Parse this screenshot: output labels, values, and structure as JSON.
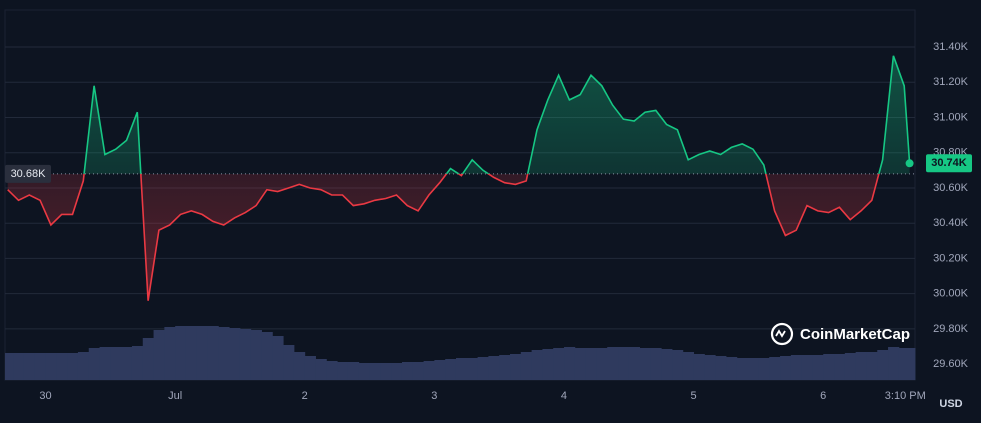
{
  "chart_data": {
    "type": "line",
    "x": [
      -7,
      -5,
      -3,
      -1,
      1,
      3,
      5,
      7,
      9,
      11,
      13,
      15,
      17,
      19,
      21,
      23,
      25,
      27,
      29,
      31,
      33,
      35,
      37,
      39,
      41,
      43,
      45,
      47,
      49,
      51,
      53,
      55,
      57,
      59,
      61,
      63,
      65,
      67,
      69,
      71,
      73,
      75,
      77,
      79,
      81,
      83,
      85,
      87,
      89,
      91,
      93,
      95,
      97,
      99,
      101,
      103,
      105,
      107,
      109,
      111,
      113,
      115,
      117,
      119,
      121,
      123,
      125,
      127,
      129,
      131,
      133,
      135,
      137,
      139,
      141,
      143,
      145,
      147,
      149,
      151,
      153,
      155,
      157,
      159,
      160
    ],
    "values": [
      30.59,
      30.53,
      30.56,
      30.53,
      30.39,
      30.45,
      30.45,
      30.64,
      31.18,
      30.79,
      30.82,
      30.87,
      31.03,
      29.96,
      30.36,
      30.39,
      30.45,
      30.47,
      30.45,
      30.41,
      30.39,
      30.43,
      30.46,
      30.5,
      30.59,
      30.58,
      30.6,
      30.62,
      30.6,
      30.59,
      30.56,
      30.56,
      30.5,
      30.51,
      30.53,
      30.54,
      30.56,
      30.5,
      30.47,
      30.56,
      30.63,
      30.71,
      30.67,
      30.76,
      30.7,
      30.66,
      30.63,
      30.62,
      30.64,
      30.93,
      31.1,
      31.24,
      31.1,
      31.13,
      31.24,
      31.18,
      31.07,
      30.99,
      30.98,
      31.03,
      31.04,
      30.96,
      30.93,
      30.76,
      30.79,
      30.81,
      30.79,
      30.83,
      30.85,
      30.82,
      30.73,
      30.47,
      30.33,
      30.36,
      30.5,
      30.47,
      30.46,
      30.49,
      30.42,
      30.47,
      30.53,
      30.76,
      31.35,
      31.18,
      30.74
    ],
    "up_color": "#16c784",
    "down_color": "#ea3943",
    "baseline": {
      "value": 30.68,
      "label": "30.68K"
    },
    "last_price": {
      "value": 30.74,
      "label": "30.74K"
    },
    "volume": {
      "values": [
        27,
        27,
        27,
        27,
        27,
        27,
        27,
        28,
        32,
        33,
        33,
        33,
        34,
        42,
        50,
        53,
        54,
        54,
        54,
        54,
        53,
        52,
        51,
        50,
        48,
        44,
        35,
        28,
        24,
        21,
        19,
        18,
        18,
        17,
        17,
        17,
        17,
        18,
        18,
        19,
        20,
        21,
        22,
        22,
        23,
        24,
        25,
        26,
        28,
        30,
        31,
        32,
        33,
        32,
        32,
        32,
        33,
        33,
        33,
        32,
        32,
        31,
        30,
        28,
        26,
        25,
        24,
        23,
        22,
        22,
        22,
        23,
        24,
        25,
        25,
        25,
        26,
        26,
        27,
        28,
        28,
        30,
        33,
        32,
        32
      ],
      "ylim": [
        0,
        60
      ],
      "color": "#2f3a5e"
    },
    "xlim": [
      -7.5,
      161
    ],
    "xticks": [
      {
        "value": 0,
        "label": "30"
      },
      {
        "value": 24,
        "label": "Jul"
      },
      {
        "value": 48,
        "label": "2"
      },
      {
        "value": 72,
        "label": "3"
      },
      {
        "value": 96,
        "label": "4"
      },
      {
        "value": 120,
        "label": "5"
      },
      {
        "value": 144,
        "label": "6"
      },
      {
        "value": 159.2,
        "label": "3:10 PM"
      }
    ],
    "ylim": [
      29.51,
      31.61
    ],
    "yticks": [
      {
        "value": 29.6,
        "label": "29.60K"
      },
      {
        "value": 29.8,
        "label": "29.80K"
      },
      {
        "value": 30.0,
        "label": "30.00K"
      },
      {
        "value": 30.2,
        "label": "30.20K"
      },
      {
        "value": 30.4,
        "label": "30.40K"
      },
      {
        "value": 30.6,
        "label": "30.60K"
      },
      {
        "value": 30.8,
        "label": "30.80K"
      },
      {
        "value": 31.0,
        "label": "31.00K"
      },
      {
        "value": 31.2,
        "label": "31.20K"
      },
      {
        "value": 31.4,
        "label": "31.40K"
      }
    ],
    "grid": true,
    "currency": "USD",
    "watermark": "CoinMarketCap"
  }
}
